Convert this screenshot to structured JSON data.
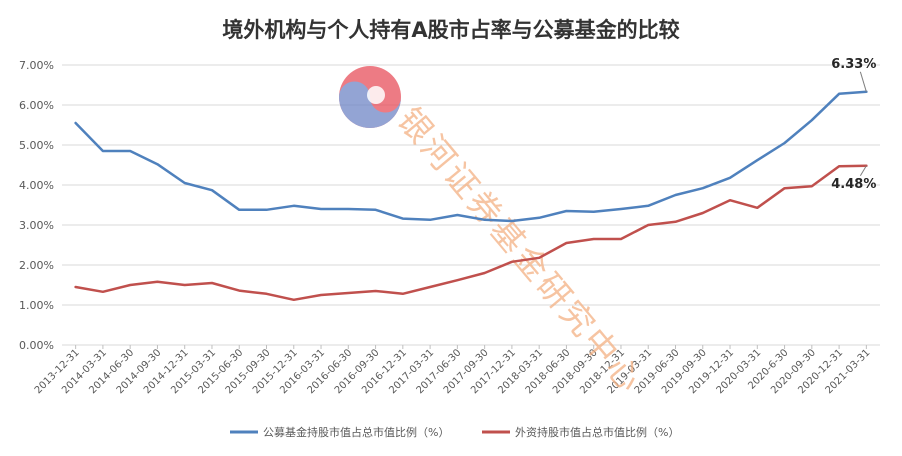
{
  "chart_data": {
    "type": "line",
    "title": "境外机构与个人持有A股市占率与公募基金的比较",
    "categories": [
      "2013-12-31",
      "2014-03-31",
      "2014-06-30",
      "2014-09-30",
      "2014-12-31",
      "2015-03-31",
      "2015-06-30",
      "2015-09-30",
      "2015-12-31",
      "2016-03-31",
      "2016-06-30",
      "2016-09-30",
      "2016-12-31",
      "2017-03-31",
      "2017-06-30",
      "2017-09-30",
      "2017-12-31",
      "2018-03-31",
      "2018-06-30",
      "2018-09-30",
      "2018-12-31",
      "2019-03-31",
      "2019-06-30",
      "2019-09-30",
      "2019-12-31",
      "2020-03-31",
      "2020-6-30",
      "2020-09-30",
      "2020-12-31",
      "2021-03-31"
    ],
    "y_ticks": [
      "0.00%",
      "1.00%",
      "2.00%",
      "3.00%",
      "4.00%",
      "5.00%",
      "6.00%",
      "7.00%"
    ],
    "ylim": [
      0,
      7
    ],
    "grid": true,
    "legend_position": "bottom",
    "series": [
      {
        "name": "公募基金持股市值占总市值比例（%）",
        "color": "#4F81BD",
        "values": [
          5.55,
          4.85,
          4.85,
          4.52,
          4.05,
          3.87,
          3.38,
          3.38,
          3.48,
          3.4,
          3.4,
          3.38,
          3.16,
          3.13,
          3.25,
          3.13,
          3.1,
          3.18,
          3.35,
          3.33,
          3.4,
          3.48,
          3.75,
          3.92,
          4.18,
          4.62,
          5.05,
          5.62,
          6.28,
          6.33
        ]
      },
      {
        "name": "外资持股市值占总市值比例（%）",
        "color": "#C0504D",
        "values": [
          1.45,
          1.33,
          1.5,
          1.58,
          1.5,
          1.55,
          1.36,
          1.28,
          1.13,
          1.25,
          1.3,
          1.35,
          1.28,
          1.45,
          1.62,
          1.8,
          2.08,
          2.18,
          2.55,
          2.65,
          2.65,
          3.0,
          3.08,
          3.3,
          3.62,
          3.43,
          3.92,
          3.97,
          4.47,
          4.48
        ]
      }
    ],
    "annotations": [
      {
        "series": 0,
        "index": 29,
        "text": "6.33%"
      },
      {
        "series": 1,
        "index": 29,
        "text": "4.48%"
      }
    ]
  },
  "watermark": {
    "text": "银河证券基金研究中心",
    "logo_colors": [
      "#E8505B",
      "#6F86C6"
    ]
  }
}
